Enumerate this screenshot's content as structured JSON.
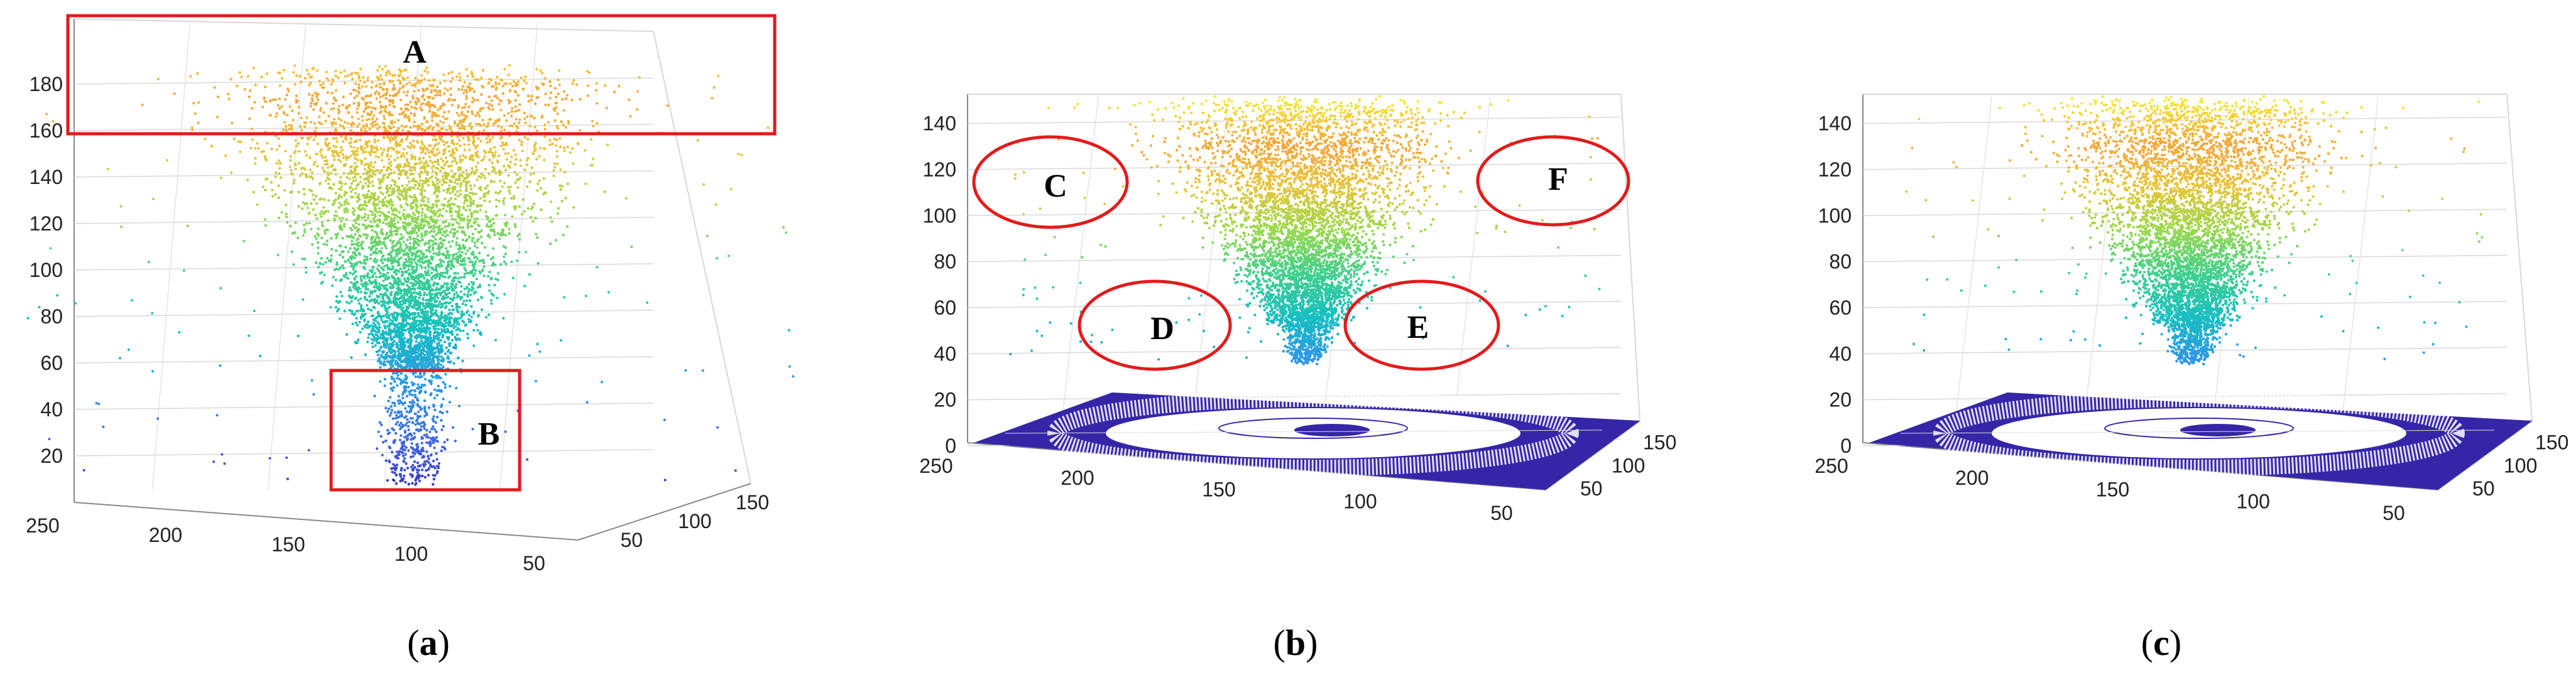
{
  "colormap": [
    "#3b2bb0",
    "#3f63e0",
    "#2c97e8",
    "#16bfc0",
    "#3fd08c",
    "#9ad84a",
    "#e6c53a",
    "#f4a63a",
    "#f5e82a"
  ],
  "annotation_color": "#e41a1c",
  "panels": [
    {
      "caption_letter": "a",
      "chart_data": {
        "type": "scatter3d",
        "z_ticks": [
          "20",
          "40",
          "60",
          "80",
          "100",
          "120",
          "140",
          "160",
          "180"
        ],
        "x_ticks": [
          "250",
          "200",
          "150",
          "100",
          "50"
        ],
        "y_ticks": [
          "50",
          "100",
          "150"
        ],
        "zlim": [
          0,
          200
        ],
        "ground_plane": false,
        "shape": "inverted cone with columnar base",
        "annotations": [
          {
            "label": "A",
            "shape": "rect",
            "note": "top band z 160-200"
          },
          {
            "label": "B",
            "shape": "rect",
            "note": "base column z 0-50"
          }
        ]
      }
    },
    {
      "caption_letter": "b",
      "chart_data": {
        "type": "scatter3d",
        "z_ticks": [
          "0",
          "20",
          "40",
          "60",
          "80",
          "100",
          "120",
          "140"
        ],
        "x_ticks": [
          "250",
          "200",
          "150",
          "100",
          "50"
        ],
        "y_ticks": [
          "50",
          "100",
          "150"
        ],
        "zlim": [
          0,
          150
        ],
        "ground_plane": true,
        "shape": "inverted cone above ground plane",
        "annotations": [
          {
            "label": "C",
            "shape": "ellipse"
          },
          {
            "label": "D",
            "shape": "ellipse"
          },
          {
            "label": "E",
            "shape": "ellipse"
          },
          {
            "label": "F",
            "shape": "ellipse"
          }
        ]
      }
    },
    {
      "caption_letter": "c",
      "chart_data": {
        "type": "scatter3d",
        "z_ticks": [
          "0",
          "20",
          "40",
          "60",
          "80",
          "100",
          "120",
          "140"
        ],
        "x_ticks": [
          "250",
          "200",
          "150",
          "100",
          "50"
        ],
        "y_ticks": [
          "50",
          "100",
          "150"
        ],
        "zlim": [
          0,
          150
        ],
        "ground_plane": true,
        "shape": "inverted cone above ground plane",
        "annotations": []
      }
    }
  ]
}
